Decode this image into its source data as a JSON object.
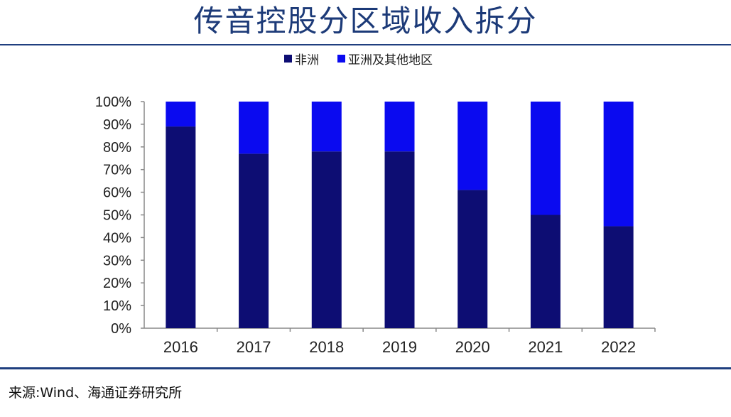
{
  "header": {
    "title": "传音控股分区域收入拆分"
  },
  "footer": {
    "source": "来源:Wind、海通证券研究所"
  },
  "colors": {
    "africa": "#0d0d73",
    "asia_other": "#0a0af0",
    "axis": "#888888",
    "rule": "#1f3f7f"
  },
  "chart_data": {
    "type": "bar",
    "stacked": true,
    "title": "",
    "xlabel": "",
    "ylabel": "",
    "categories": [
      "2016",
      "2017",
      "2018",
      "2019",
      "2020",
      "2021",
      "2022"
    ],
    "series": [
      {
        "name": "非洲",
        "values": [
          89,
          77,
          78,
          78,
          61,
          50,
          45
        ]
      },
      {
        "name": "亚洲及其他地区",
        "values": [
          11,
          23,
          22,
          22,
          39,
          50,
          55
        ]
      }
    ],
    "ylim": [
      0,
      100
    ],
    "yticks": [
      "0%",
      "10%",
      "20%",
      "30%",
      "40%",
      "50%",
      "60%",
      "70%",
      "80%",
      "90%",
      "100%"
    ],
    "legend_position": "top",
    "grid": false
  }
}
